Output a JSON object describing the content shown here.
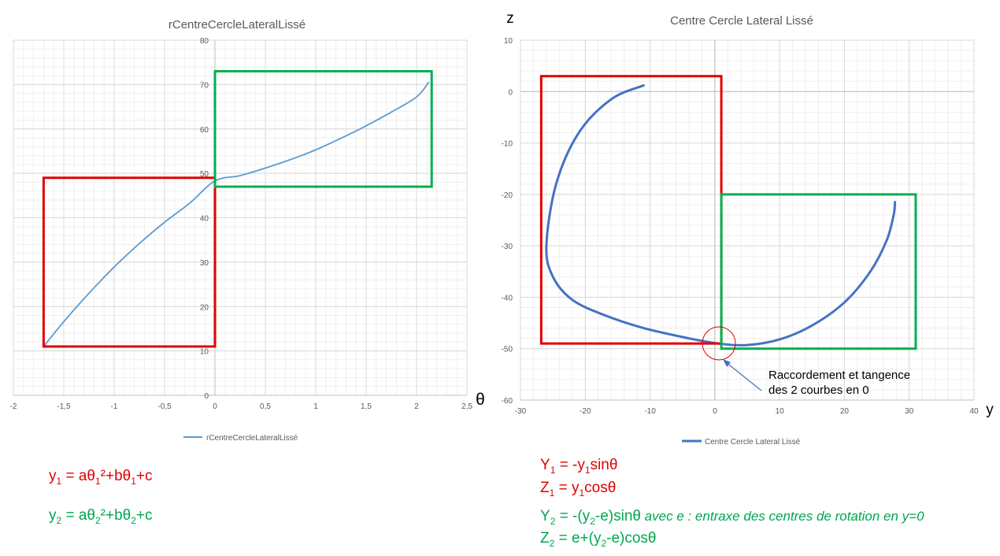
{
  "colors": {
    "red_box": "#e00000",
    "green_box": "#00b050",
    "left_series": "#5b9bd5",
    "right_series": "#4472c4",
    "formula_red": "#e00000",
    "formula_green": "#00a650"
  },
  "chart_data": [
    {
      "type": "line",
      "title": "rCentreCercleLateralLissé",
      "xlabel": "θ",
      "ylabel": "",
      "xlim": [
        -2,
        2.5
      ],
      "ylim": [
        0,
        80
      ],
      "x_ticks": [
        "-2",
        "-1,5",
        "-1",
        "-0,5",
        "0",
        "0,5",
        "1",
        "1,5",
        "2",
        "2,5"
      ],
      "y_ticks": [
        "0",
        "10",
        "20",
        "30",
        "40",
        "50",
        "60",
        "70",
        "80"
      ],
      "grid": true,
      "legend_position": "bottom",
      "series": [
        {
          "name": "rCentreCercleLateralLissé",
          "x": [
            -1.7,
            -1.5,
            -1.25,
            -1.0,
            -0.75,
            -0.5,
            -0.25,
            0,
            0.25,
            0.5,
            0.75,
            1.0,
            1.25,
            1.5,
            1.75,
            2.0,
            2.12
          ],
          "y": [
            11.0,
            16.6,
            23.0,
            28.9,
            34.2,
            39.0,
            43.3,
            48.3,
            49.5,
            51.2,
            53.1,
            55.3,
            57.9,
            60.7,
            63.8,
            67.2,
            70.5
          ]
        }
      ],
      "boxes": [
        {
          "color": "red",
          "x": [
            -1.7,
            0
          ],
          "y": [
            11,
            49
          ]
        },
        {
          "color": "green",
          "x": [
            0,
            2.15
          ],
          "y": [
            47,
            73
          ]
        }
      ]
    },
    {
      "type": "line",
      "title": "Centre Cercle Lateral Lissé",
      "xlabel": "y",
      "ylabel": "z",
      "xlim": [
        -30,
        40
      ],
      "ylim": [
        -60,
        10
      ],
      "x_ticks": [
        "-30",
        "-20",
        "-10",
        "0",
        "10",
        "20",
        "30",
        "40"
      ],
      "y_ticks": [
        "10",
        "0",
        "-10",
        "-20",
        "-30",
        "-40",
        "-50",
        "-60"
      ],
      "grid": true,
      "legend_position": "bottom",
      "annotation": "Raccordement et tangence des 2 courbes en 0",
      "series": [
        {
          "name": "Centre Cercle Lateral Lissé",
          "x": [
            -11,
            -16,
            -21,
            -24.5,
            -26,
            -25,
            -22,
            -17,
            -11,
            -4,
            0.5,
            5,
            10,
            15,
            20,
            24,
            26.5,
            27.6,
            27.8
          ],
          "y": [
            1.2,
            -1.5,
            -8,
            -18,
            -30,
            -36,
            -40.5,
            -43.5,
            -46,
            -48,
            -49,
            -49.3,
            -48.2,
            -45.5,
            -41,
            -35,
            -29,
            -24,
            -21.5
          ]
        }
      ],
      "boxes": [
        {
          "color": "red",
          "x": [
            -26.8,
            1
          ],
          "y": [
            -49,
            3
          ]
        },
        {
          "color": "green",
          "x": [
            1,
            31
          ],
          "y": [
            -50,
            -20
          ]
        }
      ]
    }
  ],
  "formulas": {
    "left": {
      "y1": {
        "var": "y",
        "sub": "1",
        "eq": " = aθ",
        "sub2": "1",
        "tail": "²+bθ",
        "sub3": "1",
        "end": "+c"
      },
      "y2": {
        "var": "y",
        "sub": "2",
        "eq": " = aθ",
        "sub2": "2",
        "tail": "²+bθ",
        "sub3": "2",
        "end": "+c"
      }
    },
    "right": {
      "Y1": {
        "a": "Y",
        "s1": "1",
        "b": " = -y",
        "s2": "1",
        "c": "sinθ"
      },
      "Z1": {
        "a": "Z",
        "s1": "1",
        "b": " = y",
        "s2": "1",
        "c": "cosθ"
      },
      "Y2": {
        "a": "Y",
        "s1": "2",
        "b": " = -(y",
        "s2": "2",
        "c": "-e)sinθ",
        "note": " avec e : entraxe des centres de rotation en y=0"
      },
      "Z2": {
        "a": "Z",
        "s1": "2",
        "b": " = e+(y",
        "s2": "2",
        "c": "-e)cosθ"
      }
    }
  }
}
